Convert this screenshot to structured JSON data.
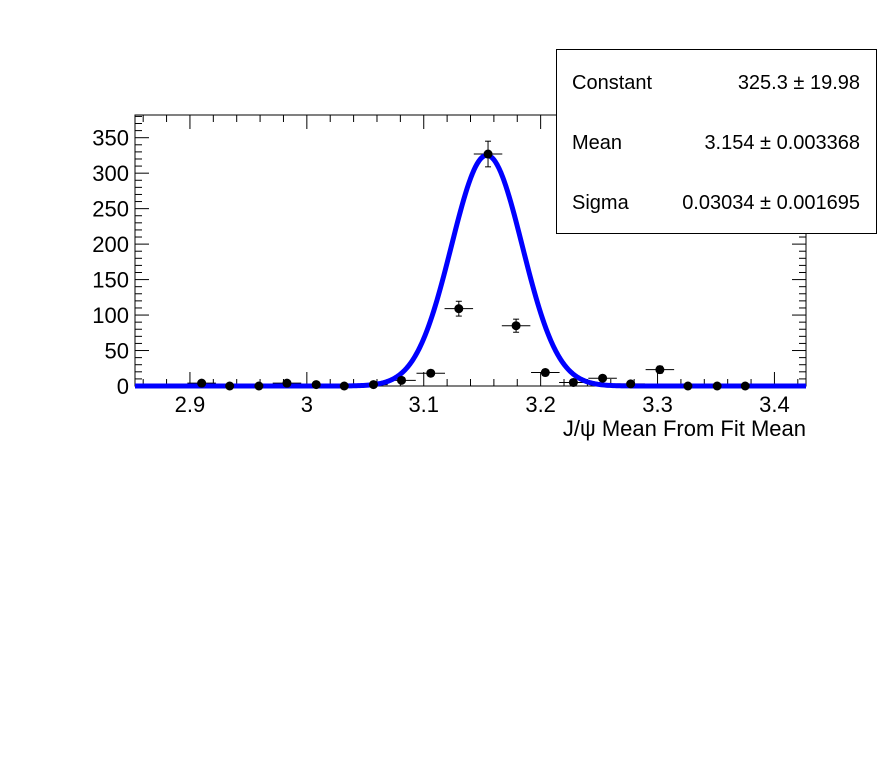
{
  "chart_data": {
    "type": "scatter",
    "title": "",
    "xlabel": "J/ψ Mean From Fit Mean",
    "ylabel": "",
    "xlim": [
      2.853,
      3.427
    ],
    "ylim": [
      0,
      382
    ],
    "x_ticks": [
      "2.9",
      "3",
      "3.1",
      "3.2",
      "3.3",
      "3.4"
    ],
    "x_tick_values": [
      2.9,
      3.0,
      3.1,
      3.2,
      3.3,
      3.4
    ],
    "y_ticks": [
      "0",
      "50",
      "100",
      "150",
      "200",
      "250",
      "300",
      "350"
    ],
    "y_tick_values": [
      0,
      50,
      100,
      150,
      200,
      250,
      300,
      350
    ],
    "bin_half_width": 0.0122,
    "series": [
      {
        "kind": "points-with-errors",
        "color": "#000000",
        "x": [
          2.91,
          2.934,
          2.959,
          2.983,
          3.008,
          3.032,
          3.057,
          3.081,
          3.106,
          3.13,
          3.155,
          3.179,
          3.204,
          3.228,
          3.253,
          3.277,
          3.302,
          3.326,
          3.351,
          3.375
        ],
        "y": [
          4,
          0,
          0,
          4,
          2,
          0,
          2,
          8,
          18,
          109,
          327,
          85,
          19,
          5,
          11,
          3,
          23,
          0,
          0,
          0
        ]
      },
      {
        "kind": "gaussian-fit",
        "color": "#0000ff",
        "constant": 325.3,
        "mean": 3.154,
        "sigma": 0.03034
      }
    ],
    "stats_box": {
      "rows": [
        {
          "name": "Constant",
          "value": "325.3 ± 19.98"
        },
        {
          "name": "Mean",
          "value": "3.154 ± 0.003368"
        },
        {
          "name": "Sigma",
          "value": "0.03034 ± 0.001695"
        }
      ]
    }
  }
}
